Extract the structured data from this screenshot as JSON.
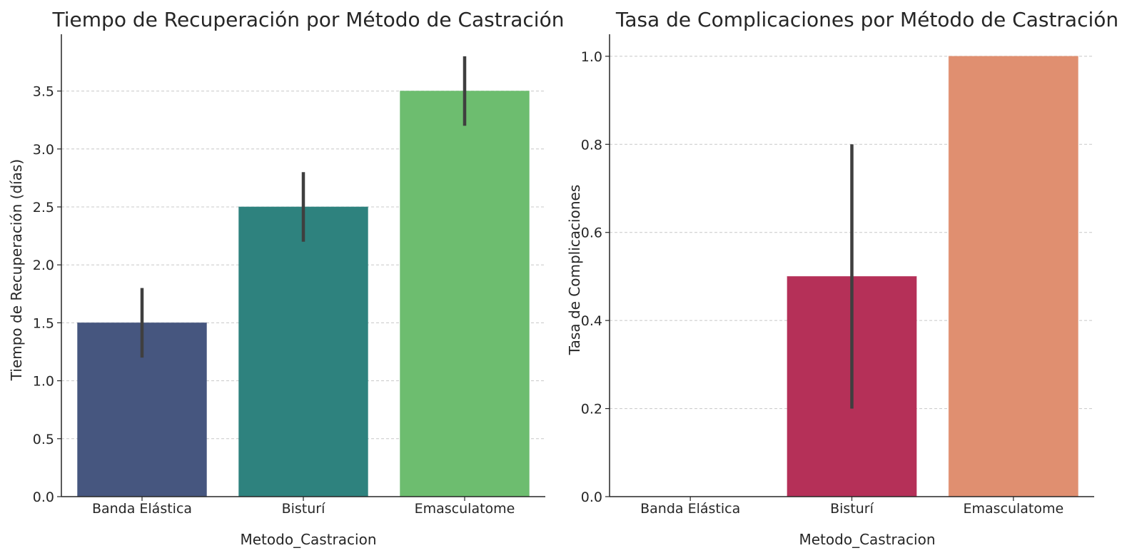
{
  "chart_data": [
    {
      "type": "bar",
      "title": "Tiempo de Recuperación por Método de Castración",
      "xlabel": "Metodo_Castracion",
      "ylabel": "Tiempo de Recuperación (días)",
      "categories": [
        "Banda Elástica",
        "Bisturí",
        "Emasculatome"
      ],
      "values": [
        1.5,
        2.5,
        3.5
      ],
      "error_low": [
        1.2,
        2.2,
        3.2
      ],
      "error_high": [
        1.8,
        2.8,
        3.8
      ],
      "colors": [
        "#46567f",
        "#2e827e",
        "#6dbd6f"
      ],
      "ylim": [
        0,
        3.99
      ],
      "yticks": [
        0.0,
        0.5,
        1.0,
        1.5,
        2.0,
        2.5,
        3.0,
        3.5
      ],
      "ytick_labels": [
        "0.0",
        "0.5",
        "1.0",
        "1.5",
        "2.0",
        "2.5",
        "3.0",
        "3.5"
      ],
      "grid": true
    },
    {
      "type": "bar",
      "title": "Tasa de Complicaciones por Método de Castración",
      "xlabel": "Metodo_Castracion",
      "ylabel": "Tasa de Complicaciones",
      "categories": [
        "Banda Elástica",
        "Bisturí",
        "Emasculatome"
      ],
      "values": [
        0.0,
        0.5,
        1.0
      ],
      "error_low": [
        0.0,
        0.2,
        1.0
      ],
      "error_high": [
        0.0,
        0.8,
        1.0
      ],
      "colors": [
        "#46567f",
        "#b53058",
        "#e08f70"
      ],
      "ylim": [
        0,
        1.05
      ],
      "yticks": [
        0.0,
        0.2,
        0.4,
        0.6,
        0.8,
        1.0
      ],
      "ytick_labels": [
        "0.0",
        "0.2",
        "0.4",
        "0.6",
        "0.8",
        "1.0"
      ],
      "grid": true
    }
  ]
}
